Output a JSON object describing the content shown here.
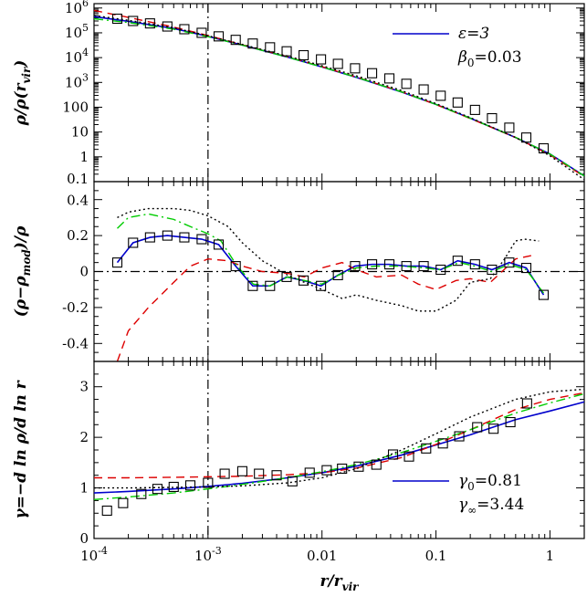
{
  "chart_data": [
    {
      "type": "line",
      "panel": "top",
      "xscale": "log",
      "yscale": "log",
      "xlim": [
        0.0001,
        2
      ],
      "ylim": [
        0.1,
        1500000
      ],
      "ylabel": "ρ/ρ(r_vir)",
      "ylabel_parts": {
        "main": "ρ/ρ(r",
        "sub": "vir",
        "close": ")"
      },
      "yticks": [
        {
          "v": 1000000,
          "t": "10",
          "sup": "6"
        },
        {
          "v": 100000,
          "t": "10",
          "sup": "5"
        },
        {
          "v": 10000,
          "t": "10",
          "sup": "4"
        },
        {
          "v": 1000,
          "t": "10",
          "sup": "3"
        },
        {
          "v": 100,
          "t": "100"
        },
        {
          "v": 10,
          "t": "10"
        },
        {
          "v": 1,
          "t": "1"
        },
        {
          "v": 0.1,
          "t": "0.1"
        }
      ],
      "legend": {
        "position": "top-right",
        "entry": "ε=3",
        "extra": "β",
        "extra_sub": "0",
        "extra_val": "=0.03"
      },
      "vline_x": 0.001,
      "series": [
        {
          "name": "ε=3",
          "style": "solid",
          "color": "#0000cc",
          "x": [
            0.0001,
            0.0002,
            0.0005,
            0.001,
            0.002,
            0.005,
            0.01,
            0.02,
            0.05,
            0.1,
            0.2,
            0.5,
            1,
            2
          ],
          "y": [
            450000,
            290000,
            150000,
            72000,
            32000,
            10500,
            4200,
            1600,
            410,
            130,
            36,
            6,
            1.3,
            0.17
          ]
        },
        {
          "style": "dashed",
          "color": "#dd0000",
          "x": [
            0.0001,
            0.0002,
            0.0005,
            0.001,
            0.002,
            0.005,
            0.01,
            0.02,
            0.05,
            0.1,
            0.2,
            0.5,
            1,
            2
          ],
          "y": [
            800000,
            420000,
            170000,
            78000,
            33000,
            10800,
            4300,
            1650,
            420,
            128,
            35,
            6,
            1.2,
            0.16
          ]
        },
        {
          "style": "dashdot",
          "color": "#00cc00",
          "x": [
            0.0001,
            0.0002,
            0.0005,
            0.001,
            0.002,
            0.005,
            0.01,
            0.02,
            0.05,
            0.1,
            0.2,
            0.5,
            1,
            2
          ],
          "y": [
            370000,
            260000,
            140000,
            70000,
            32000,
            10400,
            4200,
            1620,
            415,
            130,
            36,
            6.1,
            1.3,
            0.17
          ]
        },
        {
          "style": "dotted",
          "color": "#000000",
          "x": [
            0.0001,
            0.0002,
            0.0005,
            0.001,
            0.002,
            0.005,
            0.01,
            0.02,
            0.05,
            0.1,
            0.2,
            0.5,
            1,
            2
          ],
          "y": [
            500000,
            320000,
            160000,
            76000,
            34000,
            11500,
            4700,
            1850,
            470,
            140,
            38,
            6,
            1.1,
            0.12
          ]
        },
        {
          "style": "squares",
          "color": "#000000",
          "x": [
            0.00016,
            0.00022,
            0.00031,
            0.00044,
            0.00062,
            0.00088,
            0.00124,
            0.00175,
            0.00247,
            0.0035,
            0.0049,
            0.0069,
            0.0098,
            0.0138,
            0.0195,
            0.0275,
            0.039,
            0.055,
            0.078,
            0.11,
            0.155,
            0.22,
            0.31,
            0.44,
            0.62,
            0.88
          ],
          "y": [
            370000,
            300000,
            240000,
            180000,
            140000,
            100000,
            72000,
            52000,
            37000,
            26000,
            18000,
            12500,
            8500,
            5600,
            3700,
            2350,
            1450,
            880,
            520,
            290,
            155,
            78,
            36,
            15,
            6,
            2.2
          ]
        }
      ]
    },
    {
      "type": "line",
      "panel": "middle",
      "xscale": "log",
      "xlim": [
        0.0001,
        2
      ],
      "ylim": [
        -0.5,
        0.5
      ],
      "ylabel": "(ρ−ρ_mod)/ρ",
      "ylabel_parts": {
        "main": "(ρ−ρ",
        "sub": "mod",
        "close": ")/ρ"
      },
      "yticks": [
        {
          "v": 0.4,
          "t": "0.4"
        },
        {
          "v": 0.2,
          "t": "0.2"
        },
        {
          "v": 0,
          "t": "0"
        },
        {
          "v": -0.2,
          "t": "-0.2"
        },
        {
          "v": -0.4,
          "t": "-0.4"
        }
      ],
      "hline_y": 0,
      "vline_x": 0.001,
      "series": [
        {
          "style": "solid",
          "color": "#0000cc",
          "x": [
            0.00016,
            0.00022,
            0.00031,
            0.00044,
            0.00062,
            0.00088,
            0.00124,
            0.00175,
            0.00247,
            0.0035,
            0.0049,
            0.0069,
            0.0098,
            0.0138,
            0.0195,
            0.0275,
            0.039,
            0.055,
            0.078,
            0.11,
            0.155,
            0.22,
            0.31,
            0.44,
            0.62,
            0.88
          ],
          "y": [
            0.05,
            0.16,
            0.19,
            0.2,
            0.19,
            0.18,
            0.15,
            0.03,
            -0.08,
            -0.08,
            -0.03,
            -0.05,
            -0.08,
            -0.02,
            0.03,
            0.04,
            0.04,
            0.03,
            0.03,
            0.01,
            0.06,
            0.04,
            0.01,
            0.05,
            0.02,
            -0.13
          ]
        },
        {
          "style": "dashed",
          "color": "#dd0000",
          "x": [
            0.00016,
            0.0002,
            0.0003,
            0.0005,
            0.0007,
            0.001,
            0.0015,
            0.002,
            0.003,
            0.005,
            0.007,
            0.01,
            0.015,
            0.02,
            0.03,
            0.05,
            0.07,
            0.1,
            0.15,
            0.2,
            0.3,
            0.5,
            0.7
          ],
          "y": [
            -0.5,
            -0.33,
            -0.2,
            -0.06,
            0.03,
            0.07,
            0.06,
            0.03,
            0,
            -0.01,
            -0.03,
            0.02,
            0.05,
            0.01,
            -0.03,
            -0.02,
            -0.07,
            -0.1,
            -0.05,
            -0.04,
            -0.06,
            0.07,
            0.09
          ]
        },
        {
          "style": "dashdot",
          "color": "#00cc00",
          "x": [
            0.00016,
            0.0002,
            0.0003,
            0.0005,
            0.0007,
            0.001,
            0.0013,
            0.0018,
            0.0025,
            0.0035,
            0.005,
            0.007,
            0.01,
            0.014,
            0.02,
            0.03,
            0.05,
            0.08,
            0.11,
            0.16,
            0.22,
            0.31,
            0.44,
            0.62,
            0.88
          ],
          "y": [
            0.24,
            0.3,
            0.32,
            0.29,
            0.25,
            0.21,
            0.17,
            0.03,
            -0.07,
            -0.08,
            -0.03,
            -0.05,
            -0.07,
            -0.02,
            0.02,
            0.03,
            0.03,
            0.02,
            0.01,
            0.05,
            0.03,
            0,
            0.04,
            0.01,
            -0.12
          ]
        },
        {
          "style": "dotted",
          "color": "#000000",
          "x": [
            0.00016,
            0.0002,
            0.0003,
            0.0005,
            0.0007,
            0.001,
            0.0015,
            0.002,
            0.003,
            0.005,
            0.007,
            0.01,
            0.015,
            0.02,
            0.03,
            0.05,
            0.07,
            0.1,
            0.15,
            0.2,
            0.3,
            0.4,
            0.5,
            0.6,
            0.8
          ],
          "y": [
            0.3,
            0.33,
            0.35,
            0.35,
            0.34,
            0.31,
            0.25,
            0.16,
            0.06,
            -0.02,
            -0.06,
            -0.1,
            -0.15,
            -0.13,
            -0.16,
            -0.19,
            -0.22,
            -0.22,
            -0.16,
            -0.06,
            -0.04,
            0.07,
            0.17,
            0.18,
            0.17
          ]
        },
        {
          "style": "squares",
          "color": "#000000",
          "x": [
            0.00016,
            0.00022,
            0.00031,
            0.00044,
            0.00062,
            0.00088,
            0.00124,
            0.00175,
            0.00247,
            0.0035,
            0.0049,
            0.0069,
            0.0098,
            0.0138,
            0.0195,
            0.0275,
            0.039,
            0.055,
            0.078,
            0.11,
            0.155,
            0.22,
            0.31,
            0.44,
            0.62,
            0.88
          ],
          "y": [
            0.05,
            0.16,
            0.19,
            0.2,
            0.19,
            0.18,
            0.15,
            0.03,
            -0.08,
            -0.08,
            -0.03,
            -0.05,
            -0.08,
            -0.02,
            0.03,
            0.04,
            0.04,
            0.03,
            0.03,
            0.01,
            0.06,
            0.04,
            0.01,
            0.05,
            0.02,
            -0.13
          ]
        }
      ]
    },
    {
      "type": "line",
      "panel": "bottom",
      "xscale": "log",
      "xlim": [
        0.0001,
        2
      ],
      "ylim": [
        0,
        3.5
      ],
      "xlabel": "r/r_vir",
      "xlabel_parts": {
        "main": "r/r",
        "sub": "vir"
      },
      "ylabel": "γ=−d ln ρ/d ln r",
      "xticks": [
        {
          "v": 0.0001,
          "t": "10",
          "sup": "-4"
        },
        {
          "v": 0.001,
          "t": "10",
          "sup": "-3"
        },
        {
          "v": 0.01,
          "t": "0.01"
        },
        {
          "v": 0.1,
          "t": "0.1"
        },
        {
          "v": 1,
          "t": "1"
        }
      ],
      "yticks": [
        {
          "v": 3,
          "t": "3"
        },
        {
          "v": 2,
          "t": "2"
        },
        {
          "v": 1,
          "t": "1"
        },
        {
          "v": 0,
          "t": "0"
        }
      ],
      "legend": {
        "position": "bottom-right",
        "entry": "γ",
        "entry_sub": "0",
        "entry_val": "=0.81",
        "extra": "γ",
        "extra_sub": "∞",
        "extra_val": "=3.44"
      },
      "vline_x": 0.001,
      "series": [
        {
          "name": "γ0=0.81",
          "style": "solid",
          "color": "#0000cc",
          "x": [
            0.0001,
            0.0002,
            0.0005,
            0.001,
            0.002,
            0.005,
            0.01,
            0.02,
            0.05,
            0.1,
            0.2,
            0.5,
            1,
            2
          ],
          "y": [
            0.9,
            0.93,
            0.98,
            1.03,
            1.09,
            1.2,
            1.3,
            1.43,
            1.65,
            1.85,
            2.05,
            2.35,
            2.52,
            2.7
          ]
        },
        {
          "style": "dashed",
          "color": "#dd0000",
          "x": [
            0.0001,
            0.0002,
            0.0005,
            0.001,
            0.002,
            0.005,
            0.01,
            0.02,
            0.05,
            0.1,
            0.2,
            0.5,
            1,
            2
          ],
          "y": [
            1.2,
            1.2,
            1.21,
            1.22,
            1.23,
            1.26,
            1.3,
            1.39,
            1.6,
            1.86,
            2.15,
            2.55,
            2.75,
            2.88
          ]
        },
        {
          "style": "dashdot",
          "color": "#00cc00",
          "x": [
            0.0001,
            0.0002,
            0.0005,
            0.001,
            0.002,
            0.005,
            0.01,
            0.02,
            0.05,
            0.1,
            0.2,
            0.5,
            1,
            2
          ],
          "y": [
            0.77,
            0.82,
            0.9,
            0.98,
            1.07,
            1.2,
            1.32,
            1.46,
            1.7,
            1.92,
            2.15,
            2.48,
            2.68,
            2.86
          ]
        },
        {
          "style": "dotted",
          "color": "#000000",
          "x": [
            0.0001,
            0.0002,
            0.0005,
            0.001,
            0.002,
            0.005,
            0.01,
            0.02,
            0.05,
            0.1,
            0.2,
            0.5,
            1,
            2
          ],
          "y": [
            1.0,
            1.0,
            1.01,
            1.02,
            1.04,
            1.1,
            1.2,
            1.38,
            1.75,
            2.07,
            2.4,
            2.75,
            2.9,
            2.95
          ]
        },
        {
          "style": "squares",
          "color": "#000000",
          "x": [
            0.00013,
            0.00018,
            0.00026,
            0.00036,
            0.0005,
            0.0007,
            0.001,
            0.0014,
            0.002,
            0.0028,
            0.004,
            0.0055,
            0.0078,
            0.011,
            0.015,
            0.021,
            0.03,
            0.042,
            0.058,
            0.082,
            0.115,
            0.16,
            0.23,
            0.32,
            0.45,
            0.63
          ],
          "y": [
            0.55,
            0.7,
            0.88,
            0.98,
            1.02,
            1.05,
            1.1,
            1.28,
            1.33,
            1.28,
            1.25,
            1.13,
            1.3,
            1.35,
            1.38,
            1.42,
            1.46,
            1.66,
            1.62,
            1.78,
            1.88,
            2.02,
            2.2,
            2.17,
            2.3,
            2.67
          ]
        }
      ]
    }
  ]
}
